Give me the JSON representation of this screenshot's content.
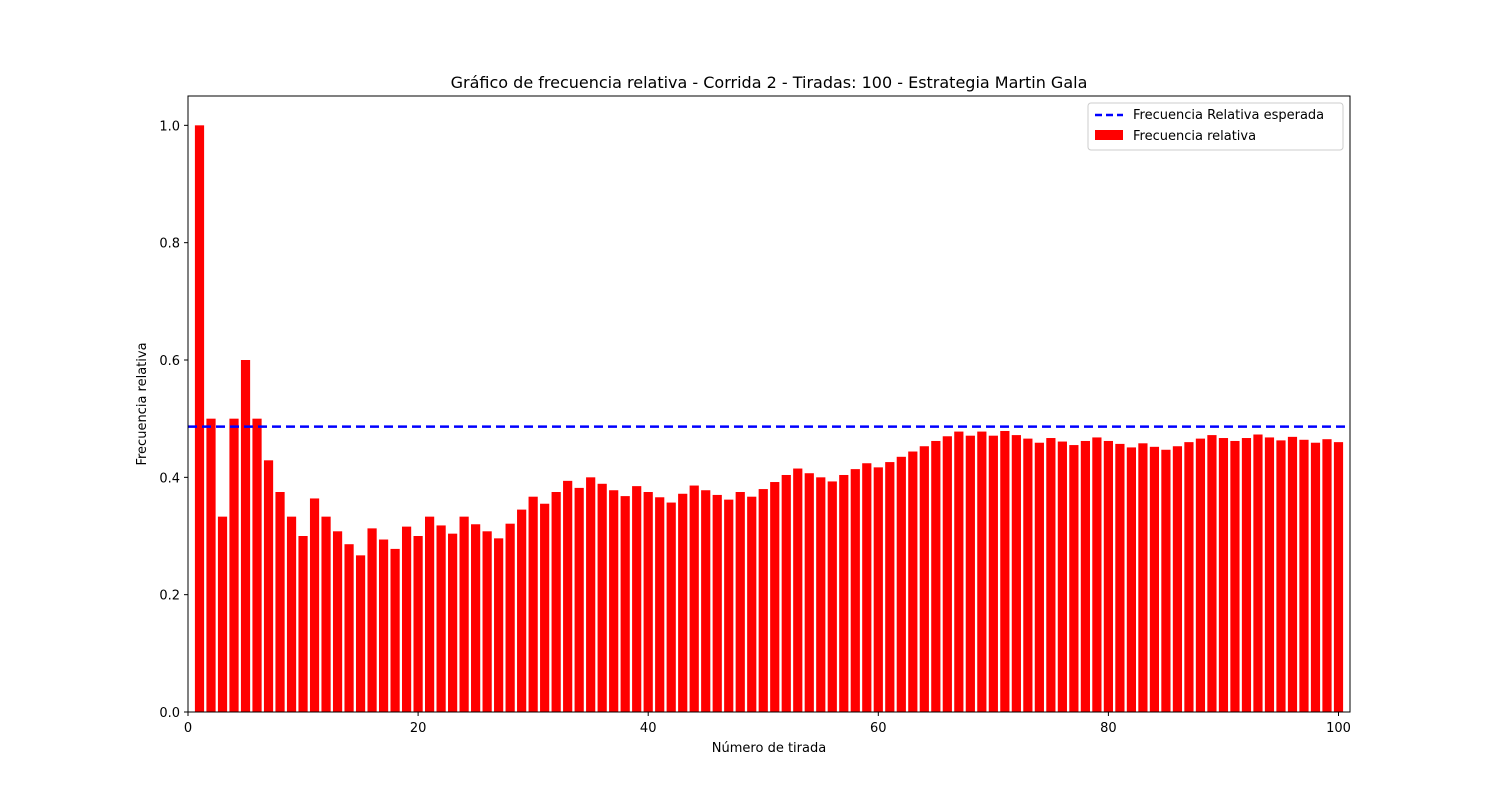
{
  "chart_data": {
    "type": "bar",
    "title": "Gráfico de frecuencia relativa - Corrida 2 - Tiradas: 100 - Estrategia Martin Gala",
    "xlabel": "Número de tirada",
    "ylabel": "Frecuencia relativa",
    "xlim": [
      0,
      101
    ],
    "ylim": [
      0,
      1.05
    ],
    "x_ticks": [
      0,
      20,
      40,
      60,
      80,
      100
    ],
    "x_tick_labels": [
      "0",
      "20",
      "40",
      "60",
      "80",
      "100"
    ],
    "y_ticks": [
      0.0,
      0.2,
      0.4,
      0.6,
      0.8,
      1.0
    ],
    "y_tick_labels": [
      "0.0",
      "0.2",
      "0.4",
      "0.6",
      "0.8",
      "1.0"
    ],
    "grid": false,
    "legend_position": "top-right",
    "expected": {
      "name": "Frecuencia Relativa esperada",
      "value": 0.4865,
      "color": "#0000ff",
      "style": "dashed"
    },
    "series": [
      {
        "name": "Frecuencia relativa",
        "color": "#ff0000",
        "x": [
          1,
          2,
          3,
          4,
          5,
          6,
          7,
          8,
          9,
          10,
          11,
          12,
          13,
          14,
          15,
          16,
          17,
          18,
          19,
          20,
          21,
          22,
          23,
          24,
          25,
          26,
          27,
          28,
          29,
          30,
          31,
          32,
          33,
          34,
          35,
          36,
          37,
          38,
          39,
          40,
          41,
          42,
          43,
          44,
          45,
          46,
          47,
          48,
          49,
          50,
          51,
          52,
          53,
          54,
          55,
          56,
          57,
          58,
          59,
          60,
          61,
          62,
          63,
          64,
          65,
          66,
          67,
          68,
          69,
          70,
          71,
          72,
          73,
          74,
          75,
          76,
          77,
          78,
          79,
          80,
          81,
          82,
          83,
          84,
          85,
          86,
          87,
          88,
          89,
          90,
          91,
          92,
          93,
          94,
          95,
          96,
          97,
          98,
          99,
          100
        ],
        "values": [
          1.0,
          0.5,
          0.333,
          0.5,
          0.6,
          0.5,
          0.429,
          0.375,
          0.333,
          0.3,
          0.364,
          0.333,
          0.308,
          0.286,
          0.267,
          0.313,
          0.294,
          0.278,
          0.316,
          0.3,
          0.333,
          0.318,
          0.304,
          0.333,
          0.32,
          0.308,
          0.296,
          0.321,
          0.345,
          0.367,
          0.355,
          0.375,
          0.394,
          0.382,
          0.4,
          0.389,
          0.378,
          0.368,
          0.385,
          0.375,
          0.366,
          0.357,
          0.372,
          0.386,
          0.378,
          0.37,
          0.362,
          0.375,
          0.367,
          0.38,
          0.392,
          0.404,
          0.415,
          0.407,
          0.4,
          0.393,
          0.404,
          0.414,
          0.424,
          0.417,
          0.426,
          0.435,
          0.444,
          0.453,
          0.462,
          0.47,
          0.478,
          0.471,
          0.478,
          0.471,
          0.479,
          0.472,
          0.466,
          0.459,
          0.467,
          0.461,
          0.455,
          0.462,
          0.468,
          0.462,
          0.457,
          0.451,
          0.458,
          0.452,
          0.447,
          0.453,
          0.46,
          0.466,
          0.472,
          0.467,
          0.462,
          0.467,
          0.473,
          0.468,
          0.463,
          0.469,
          0.464,
          0.459,
          0.465,
          0.46
        ]
      }
    ]
  }
}
